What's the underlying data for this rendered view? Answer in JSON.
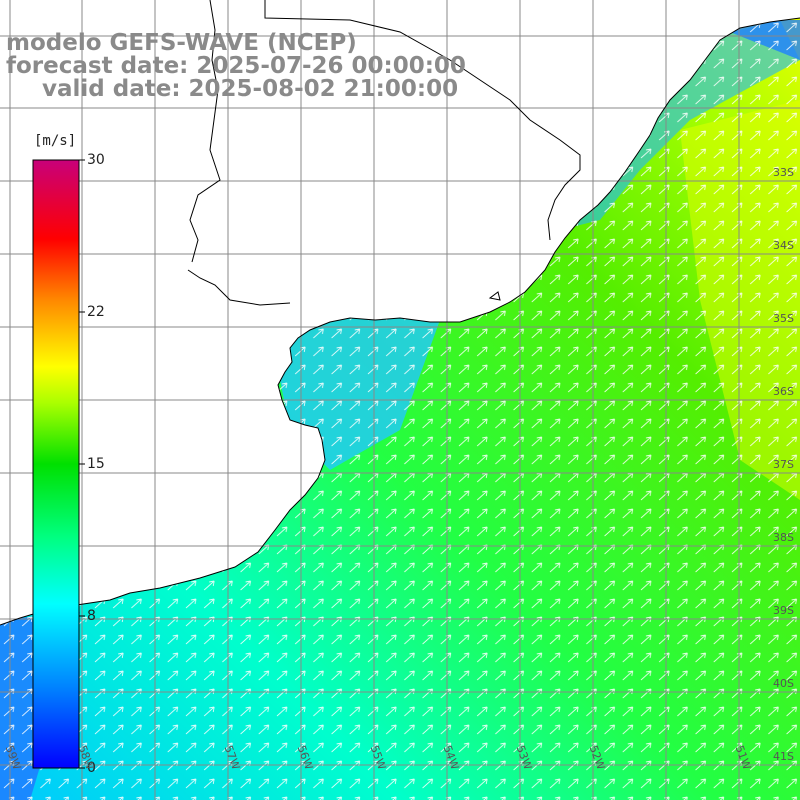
{
  "title": {
    "line1": "modelo GEFS-WAVE (NCEP)",
    "line2": "forecast date: 2025-07-26 00:00:00",
    "line3": "valid date: 2025-08-02 21:00:00"
  },
  "colorbar": {
    "unit": "[m/s]",
    "ticks": [
      "30",
      "22",
      "15",
      "8",
      "0"
    ],
    "tick_values": [
      30,
      22,
      15,
      8,
      0
    ],
    "range": [
      0,
      30
    ],
    "colors": [
      "#0000ff",
      "#00a0ff",
      "#00ffff",
      "#00ff66",
      "#00ee00",
      "#aaff00",
      "#ffff00",
      "#ff8800",
      "#ff0000",
      "#ff0066",
      "#cc0088"
    ]
  },
  "map": {
    "lat_labels": [
      "33S",
      "34S",
      "35S",
      "36S",
      "37S",
      "38S",
      "39S",
      "40S",
      "41S"
    ],
    "lon_labels": [
      "59W",
      "58W",
      "57W",
      "56W",
      "55W",
      "54W",
      "53W",
      "52W",
      "51W"
    ],
    "land_color": "#ffffff",
    "grid_color": "#888888",
    "coast_color": "#000000",
    "arrow_color": "#ffffff",
    "arrow_direction": "towards northeast"
  }
}
